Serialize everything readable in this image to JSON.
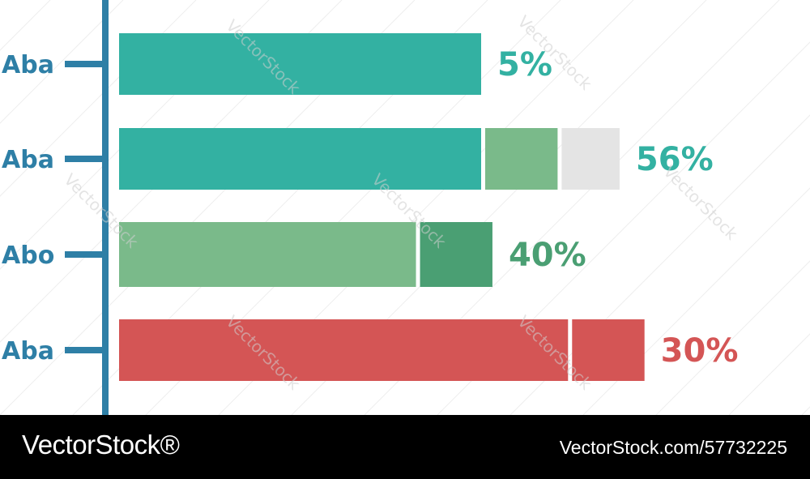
{
  "chart_data": {
    "type": "bar",
    "orientation": "horizontal",
    "categories": [
      "Aba",
      "Aba",
      "Abo",
      "Aba"
    ],
    "value_labels": [
      "5%",
      "56%",
      "40%",
      "30%"
    ],
    "segments": [
      [
        {
          "value": 1.0,
          "color": "#33b1a2"
        }
      ],
      [
        {
          "value": 1.0,
          "color": "#33b1a2"
        },
        {
          "value": 0.2,
          "color": "#7aba8a"
        },
        {
          "value": 0.16,
          "color": "#e4e4e4"
        }
      ],
      [
        {
          "value": 0.82,
          "color": "#7aba8a"
        },
        {
          "value": 0.2,
          "color": "#4a9f73"
        }
      ],
      [
        {
          "value": 1.24,
          "color": "#d45555"
        },
        {
          "value": 0.2,
          "color": "#d45555"
        }
      ]
    ],
    "label_colors": [
      "#33b1a2",
      "#33b1a2",
      "#4a9f73",
      "#d45555"
    ],
    "category_label_color": "#2e7fa6",
    "axis_color": "#2e7fa6"
  },
  "watermark": "VectorStock",
  "footer": {
    "brand": "VectorStock®",
    "image_id": "VectorStock.com/57732225"
  }
}
